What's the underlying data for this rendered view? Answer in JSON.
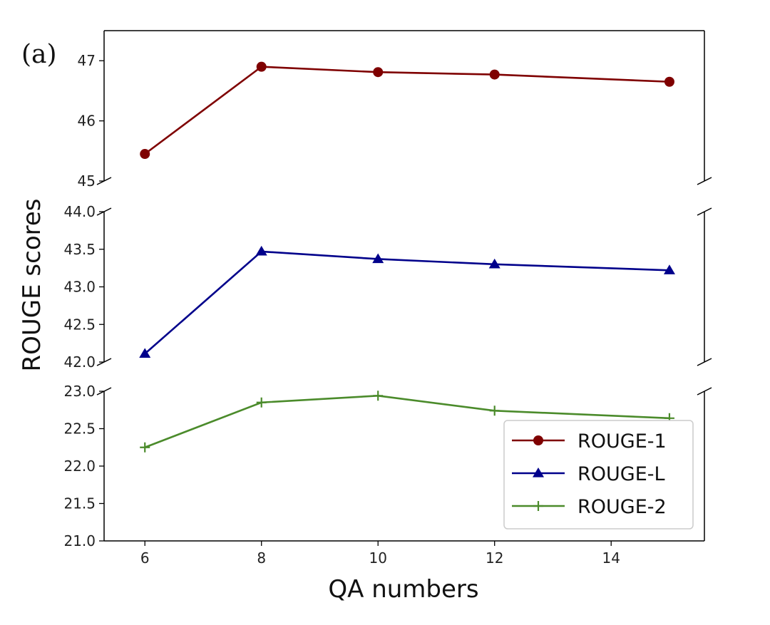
{
  "chart_data": {
    "type": "line",
    "panel_label": "(a)",
    "xlabel": "QA numbers",
    "ylabel": "ROUGE scores",
    "x": [
      6,
      8,
      10,
      12,
      15
    ],
    "xlim": [
      5.3,
      15.6
    ],
    "x_ticks": [
      6,
      8,
      10,
      12,
      14
    ],
    "broken_y_axis": true,
    "grid": false,
    "legend_position": "bottom-right",
    "panels": [
      {
        "ylim": [
          45,
          47.5
        ],
        "y_ticks": [
          "45",
          "46",
          "47"
        ],
        "series": [
          "ROUGE-1"
        ]
      },
      {
        "ylim": [
          42.0,
          44.0
        ],
        "y_ticks": [
          "42.0",
          "42.5",
          "43.0",
          "43.5",
          "44.0"
        ],
        "series": [
          "ROUGE-L"
        ]
      },
      {
        "ylim": [
          21.0,
          23.0
        ],
        "y_ticks": [
          "21.0",
          "21.5",
          "22.0",
          "22.5",
          "23.0"
        ],
        "series": [
          "ROUGE-2"
        ]
      }
    ],
    "series": [
      {
        "name": "ROUGE-1",
        "color": "#7f0000",
        "marker": "circle",
        "values": [
          45.45,
          46.9,
          46.81,
          46.77,
          46.65
        ]
      },
      {
        "name": "ROUGE-L",
        "color": "#00008b",
        "marker": "triangle",
        "values": [
          42.11,
          43.47,
          43.37,
          43.3,
          43.22
        ]
      },
      {
        "name": "ROUGE-2",
        "color": "#4b8b2b",
        "marker": "plus",
        "values": [
          22.25,
          22.85,
          22.94,
          22.74,
          22.64
        ]
      }
    ]
  }
}
